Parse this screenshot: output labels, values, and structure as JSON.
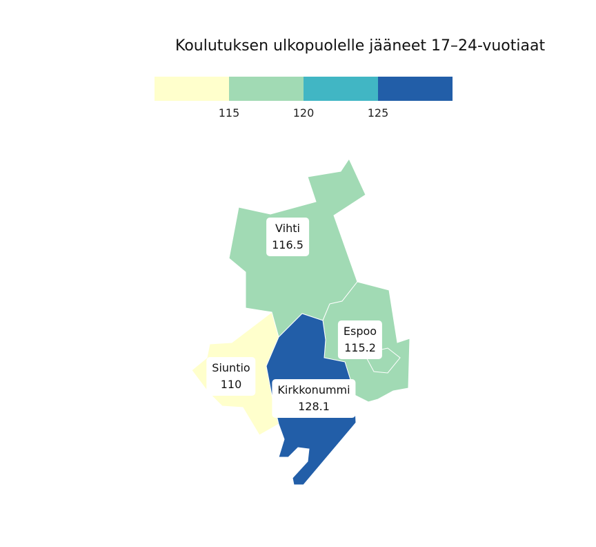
{
  "title": "Koulutuksen ulkopuolelle jääneet 17–24-vuotiaat",
  "legend": {
    "colors": [
      "#ffffcc",
      "#a1dab4",
      "#41b6c4",
      "#225ea8"
    ],
    "ticks": [
      "115",
      "120",
      "125"
    ]
  },
  "regions": [
    {
      "name": "Vihti",
      "value": "116.5",
      "color": "#a1dab4"
    },
    {
      "name": "Espoo",
      "value": "115.2",
      "color": "#a1dab4"
    },
    {
      "name": "Siuntio",
      "value": "110",
      "color": "#ffffcc"
    },
    {
      "name": "Kirkkonummi",
      "value": "128.1",
      "color": "#225ea8"
    }
  ]
}
